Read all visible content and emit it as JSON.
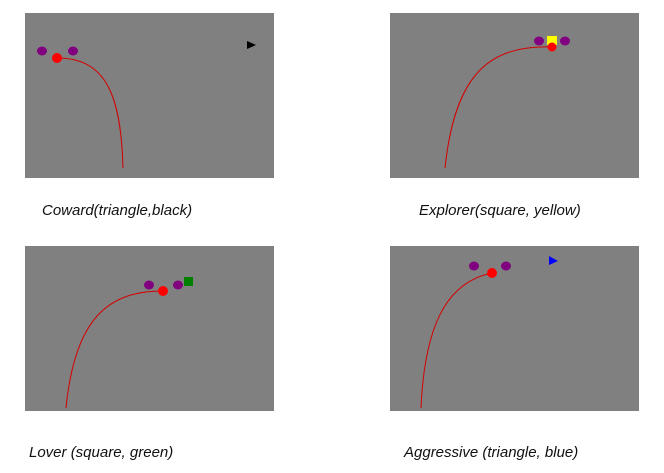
{
  "panels": [
    {
      "caption": "Coward(triangle,black)",
      "stimulus": {
        "shape": "triangle",
        "color": "#000000"
      },
      "colors": {
        "background": "#808080",
        "path": "#d40000",
        "robot": "#ff0000",
        "wheels": "#800080"
      }
    },
    {
      "caption": "Explorer(square, yellow)",
      "stimulus": {
        "shape": "square",
        "color": "#ffff00"
      },
      "colors": {
        "background": "#808080",
        "path": "#d40000",
        "robot": "#ff0000",
        "wheels": "#800080"
      }
    },
    {
      "caption": "Lover (square, green)",
      "stimulus": {
        "shape": "square",
        "color": "#008000"
      },
      "colors": {
        "background": "#808080",
        "path": "#d40000",
        "robot": "#ff0000",
        "wheels": "#800080"
      }
    },
    {
      "caption": "Aggressive (triangle, blue)",
      "stimulus": {
        "shape": "triangle",
        "color": "#0000ff"
      },
      "colors": {
        "background": "#808080",
        "path": "#d40000",
        "robot": "#ff0000",
        "wheels": "#800080"
      }
    }
  ]
}
